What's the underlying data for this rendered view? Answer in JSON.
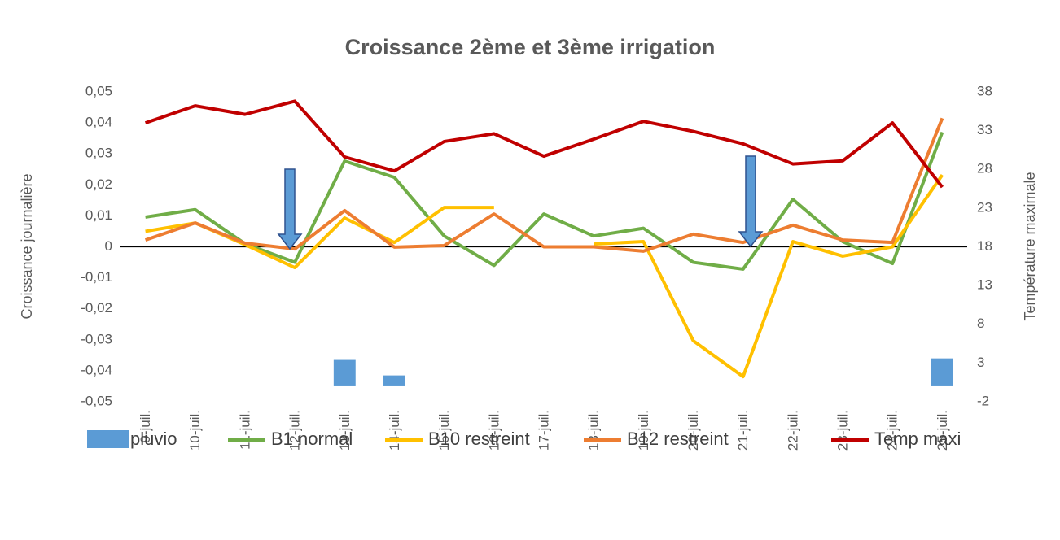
{
  "chart_data": {
    "type": "combo",
    "title": "Croissance 2ème et 3ème irrigation",
    "y_label": "Croissance journalière",
    "y2_label": "Température maximale",
    "categories": [
      "9-juil.",
      "10-juil.",
      "11-juil.",
      "12-juil.",
      "13-juil.",
      "14-juil.",
      "15-juil.",
      "16-juil.",
      "17-juil.",
      "18-juil.",
      "19-juil.",
      "20-juil.",
      "21-juil.",
      "22-juil.",
      "23-juil.",
      "24-juil.",
      "25-juil."
    ],
    "series": [
      {
        "name": "pluvio",
        "type": "bar",
        "axis": "y2",
        "color": "#5b9bd5",
        "values": [
          0,
          0,
          0,
          0,
          3.4,
          1.4,
          0,
          0,
          0,
          0,
          0,
          0,
          0,
          0,
          0,
          0,
          3.6
        ]
      },
      {
        "name": "B1 normal",
        "type": "line",
        "color": "#70ad47",
        "values": [
          0.0096,
          0.012,
          0.001,
          -0.005,
          0.0277,
          0.0224,
          0.0035,
          -0.006,
          0.0106,
          0.0035,
          0.006,
          -0.005,
          -0.0072,
          0.0153,
          0.0017,
          -0.0054,
          0.037
        ]
      },
      {
        "name": "B10 restreint",
        "type": "line",
        "color": "#ffc000",
        "values": [
          0.005,
          0.0077,
          0.0007,
          -0.0067,
          0.0093,
          0.0014,
          0.0127,
          0.0127,
          null,
          0.0009,
          0.0017,
          -0.0303,
          -0.0419,
          0.0017,
          -0.003,
          0,
          0.0232
        ]
      },
      {
        "name": "B12 restreint",
        "type": "line",
        "color": "#ed7d31",
        "values": [
          0.0022,
          0.0077,
          0.0012,
          -0.0007,
          0.0117,
          -0.0001,
          0.0004,
          0.0106,
          0,
          0,
          -0.0014,
          0.0041,
          0.0014,
          0.007,
          0.0022,
          0.0014,
          0.0415
        ]
      },
      {
        "name": "Temp maxi",
        "type": "line",
        "axis": "y2",
        "color": "#c00000",
        "values": [
          34.0,
          36.2,
          35.1,
          36.8,
          29.6,
          27.8,
          31.6,
          32.6,
          29.7,
          31.9,
          34.2,
          32.9,
          31.3,
          28.7,
          29.1,
          34.0,
          25.7
        ]
      }
    ],
    "ylim": [
      -0.05,
      0.05
    ],
    "yticks": [
      {
        "value": -0.05,
        "label": "-0,05"
      },
      {
        "value": -0.04,
        "label": "-0,04"
      },
      {
        "value": -0.03,
        "label": "-0,03"
      },
      {
        "value": -0.02,
        "label": "-0,02"
      },
      {
        "value": -0.01,
        "label": "-0,01"
      },
      0,
      {
        "value": 0.01,
        "label": "0,01"
      },
      {
        "value": 0.02,
        "label": "0,02"
      },
      {
        "value": 0.03,
        "label": "0,03"
      },
      {
        "value": 0.04,
        "label": "0,04"
      },
      {
        "value": 0.05,
        "label": "0,05"
      }
    ],
    "y2lim": [
      -2,
      38
    ],
    "y2ticks": [
      -2,
      3,
      8,
      13,
      18,
      23,
      28,
      33,
      38
    ],
    "legend": "bottom"
  }
}
